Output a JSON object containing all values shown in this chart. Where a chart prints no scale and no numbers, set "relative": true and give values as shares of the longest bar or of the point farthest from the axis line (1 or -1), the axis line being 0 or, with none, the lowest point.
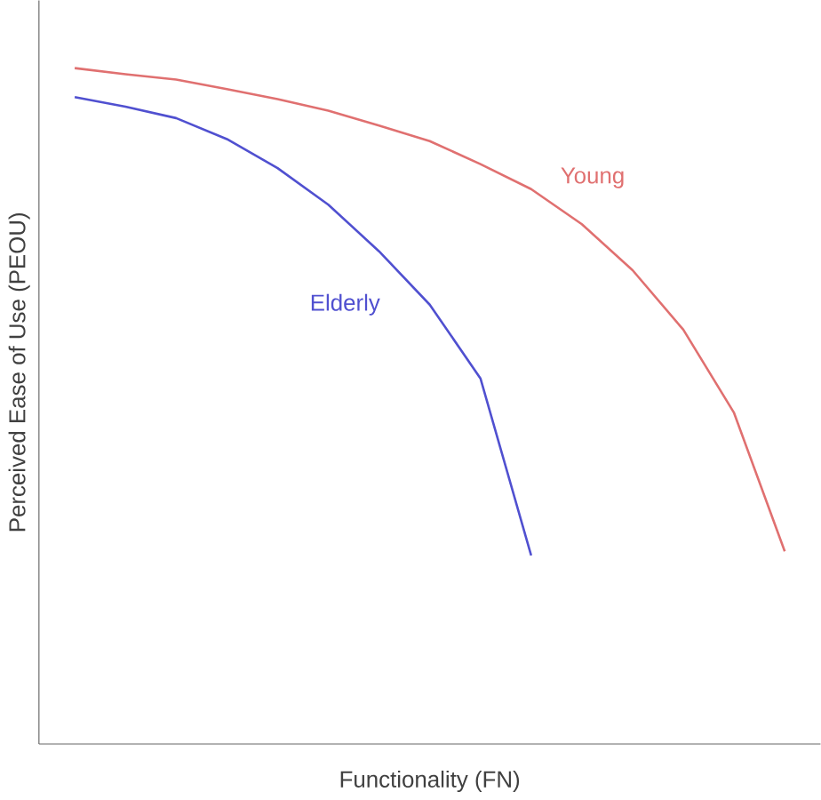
{
  "chart_data": {
    "type": "line",
    "relative": true,
    "xlabel": "Functionality (FN)",
    "ylabel": "Perceived Ease of Use (PEOU)",
    "marker": "none",
    "line_style": "solid",
    "categories": [
      null,
      null,
      null,
      null,
      null,
      null,
      null,
      null,
      null,
      null,
      null,
      null,
      null,
      null,
      null
    ],
    "series": [
      {
        "name": "Young",
        "color": "#e07070",
        "values": [
          1.0,
          0.991,
          0.983,
          0.969,
          0.954,
          0.937,
          0.915,
          0.892,
          0.858,
          0.821,
          0.769,
          0.701,
          0.613,
          0.49,
          0.285
        ]
      },
      {
        "name": "Elderly",
        "color": "#5050d0",
        "values": [
          0.957,
          0.943,
          0.926,
          0.895,
          0.852,
          0.798,
          0.729,
          0.65,
          0.541,
          0.279,
          null,
          null,
          null,
          null,
          null
        ]
      }
    ]
  }
}
